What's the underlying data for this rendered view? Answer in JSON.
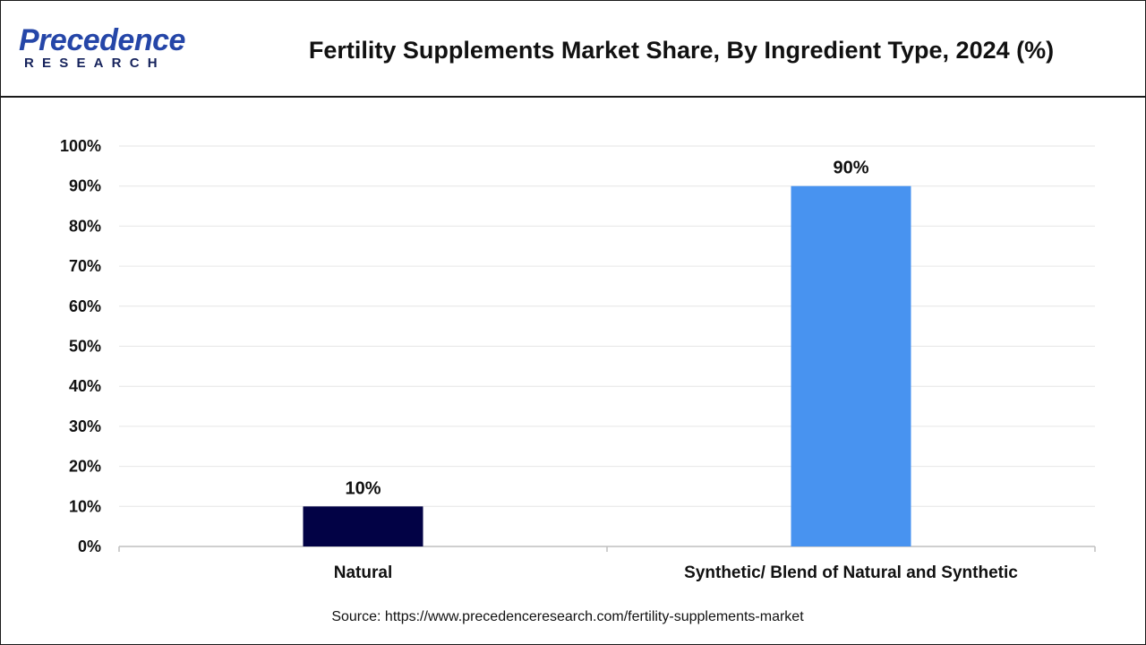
{
  "header": {
    "logo_main": "Precedence",
    "logo_sub": "RESEARCH",
    "title": "Fertility Supplements Market Share, By Ingredient Type, 2024 (%)"
  },
  "chart_data": {
    "type": "bar",
    "categories": [
      "Natural",
      "Synthetic/ Blend of Natural and Synthetic"
    ],
    "values": [
      10,
      90
    ],
    "data_labels": [
      "10%",
      "90%"
    ],
    "colors": [
      "#020245",
      "#4893f0"
    ],
    "title": "Fertility Supplements Market Share, By Ingredient Type, 2024 (%)",
    "xlabel": "",
    "ylabel": "",
    "ylim": [
      0,
      100
    ],
    "yticks": [
      "0%",
      "10%",
      "20%",
      "30%",
      "40%",
      "50%",
      "60%",
      "70%",
      "80%",
      "90%",
      "100%"
    ],
    "grid": true,
    "legend": "none"
  },
  "footer": {
    "source": "Source: https://www.precedenceresearch.com/fertility-supplements-market"
  }
}
